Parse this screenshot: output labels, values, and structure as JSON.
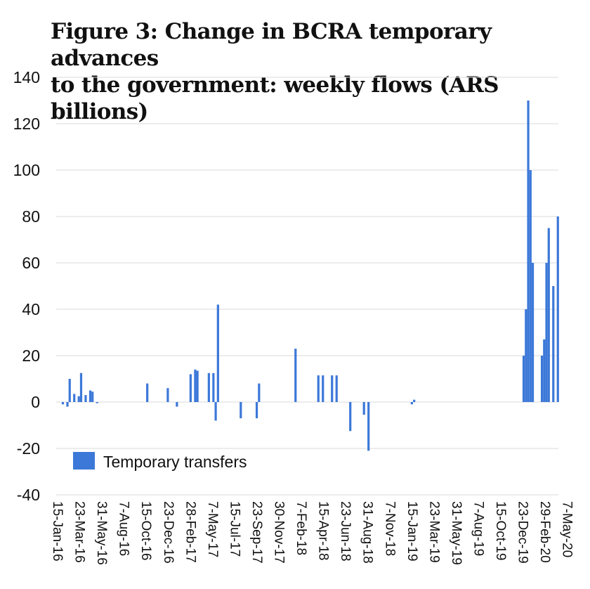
{
  "chart_data": {
    "type": "bar",
    "title_lines": [
      "Figure 3: Change in BCRA temporary advances",
      "to the government: weekly flows (ARS billions)"
    ],
    "xlabel": "",
    "ylabel": "",
    "ylim": [
      -40,
      140
    ],
    "yticks": [
      -40,
      -20,
      0,
      20,
      40,
      60,
      80,
      100,
      120,
      140
    ],
    "grid": true,
    "legend_position": "bottom-left",
    "bar_color": "#3c78d8",
    "x_start_date": "2016-01-15",
    "xticks": [
      "15-Jan-16",
      "23-Mar-16",
      "31-May-16",
      "7-Aug-16",
      "15-Oct-16",
      "23-Dec-16",
      "28-Feb-17",
      "7-May-17",
      "15-Jul-17",
      "23-Sep-17",
      "30-Nov-17",
      "7-Feb-18",
      "15-Apr-18",
      "23-Jun-18",
      "31-Aug-18",
      "7-Nov-18",
      "15-Jan-19",
      "23-Mar-19",
      "31-May-19",
      "7-Aug-19",
      "15-Oct-19",
      "23-Dec-19",
      "29-Feb-20",
      "7-May-20"
    ],
    "series": [
      {
        "name": "Temporary transfers",
        "x": [
          "2016-01-29",
          "2016-02-12",
          "2016-02-19",
          "2016-03-04",
          "2016-03-18",
          "2016-03-25",
          "2016-04-08",
          "2016-04-22",
          "2016-04-29",
          "2016-05-13",
          "2016-10-14",
          "2016-12-16",
          "2017-01-13",
          "2017-02-24",
          "2017-03-10",
          "2017-03-17",
          "2017-04-21",
          "2017-05-05",
          "2017-05-12",
          "2017-05-19",
          "2017-07-28",
          "2017-09-15",
          "2017-09-22",
          "2018-01-12",
          "2018-03-23",
          "2018-04-06",
          "2018-05-04",
          "2018-05-18",
          "2018-06-29",
          "2018-08-10",
          "2018-08-24",
          "2019-01-04",
          "2019-01-11",
          "2019-12-13",
          "2019-12-20",
          "2019-12-27",
          "2020-01-03",
          "2020-01-10",
          "2020-02-07",
          "2020-02-14",
          "2020-02-21",
          "2020-02-28",
          "2020-03-13",
          "2020-03-27"
        ],
        "values": [
          -1,
          -2,
          10,
          3.5,
          2.5,
          12.5,
          3,
          5,
          4.5,
          -0.5,
          8,
          6,
          -2,
          12,
          14,
          13.5,
          12.5,
          12.5,
          -8,
          42,
          -7,
          -7,
          8,
          23,
          11.5,
          11.5,
          11.5,
          11.5,
          -12.5,
          -5.5,
          -21,
          -1,
          1,
          20,
          40,
          130,
          100,
          60,
          20,
          27,
          60,
          75,
          50,
          80
        ]
      }
    ]
  }
}
